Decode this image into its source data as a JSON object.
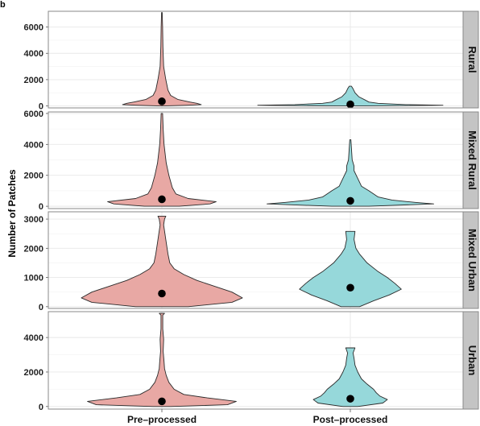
{
  "panel_label": "b",
  "chart_data": {
    "type": "violin",
    "ylabel": "Number of Patches",
    "xlabel": "",
    "categories": [
      "Pre–processed",
      "Post–processed"
    ],
    "colors": {
      "Pre–processed": "#e8a8a4",
      "Post–processed": "#96d8da",
      "strip": "#c4c4c4",
      "panel_border": "#8a8a8a",
      "grid": "#e8e8e8",
      "median_point": "#000000"
    },
    "grid": true,
    "legend": "none",
    "facets": [
      {
        "label": "Rural",
        "ylim": [
          -150,
          7200
        ],
        "yticks": [
          0,
          2000,
          4000,
          6000
        ],
        "groups": [
          {
            "category": "Pre–processed",
            "median": 350,
            "max": 7100,
            "profile": [
              [
                0,
                0.02
              ],
              [
                50,
                0.3
              ],
              [
                100,
                0.45
              ],
              [
                200,
                0.4
              ],
              [
                300,
                0.32
              ],
              [
                500,
                0.18
              ],
              [
                800,
                0.1
              ],
              [
                1200,
                0.07
              ],
              [
                2000,
                0.045
              ],
              [
                3000,
                0.02
              ],
              [
                4500,
                0.012
              ],
              [
                6000,
                0.008
              ],
              [
                7100,
                0.004
              ]
            ]
          },
          {
            "category": "Post–processed",
            "median": 120,
            "max": 1500,
            "profile": [
              [
                0,
                0.15
              ],
              [
                50,
                1.0
              ],
              [
                100,
                0.6
              ],
              [
                200,
                0.3
              ],
              [
                300,
                0.2
              ],
              [
                450,
                0.16
              ],
              [
                700,
                0.09
              ],
              [
                1000,
                0.05
              ],
              [
                1300,
                0.03
              ],
              [
                1500,
                0.012
              ]
            ]
          }
        ]
      },
      {
        "label": "Mixed Rural",
        "ylim": [
          -150,
          6100
        ],
        "yticks": [
          0,
          2000,
          4000,
          6000
        ],
        "groups": [
          {
            "category": "Pre–processed",
            "median": 450,
            "max": 6000,
            "profile": [
              [
                0,
                0.2
              ],
              [
                150,
                0.55
              ],
              [
                300,
                0.62
              ],
              [
                500,
                0.3
              ],
              [
                800,
                0.16
              ],
              [
                1200,
                0.12
              ],
              [
                2000,
                0.08
              ],
              [
                2800,
                0.05
              ],
              [
                4000,
                0.025
              ],
              [
                5000,
                0.015
              ],
              [
                6000,
                0.008
              ]
            ]
          },
          {
            "category": "Post–processed",
            "median": 350,
            "max": 4300,
            "profile": [
              [
                0,
                0.2
              ],
              [
                150,
                0.9
              ],
              [
                250,
                0.7
              ],
              [
                400,
                0.45
              ],
              [
                600,
                0.3
              ],
              [
                800,
                0.25
              ],
              [
                1000,
                0.2
              ],
              [
                1300,
                0.12
              ],
              [
                1800,
                0.08
              ],
              [
                2300,
                0.04
              ],
              [
                2600,
                0.04
              ],
              [
                3000,
                0.02
              ],
              [
                4300,
                0.006
              ]
            ]
          }
        ]
      },
      {
        "label": "Mixed Urban",
        "ylim": [
          -60,
          3250
        ],
        "yticks": [
          0,
          1000,
          2000,
          3000
        ],
        "groups": [
          {
            "category": "Pre–processed",
            "median": 450,
            "max": 3100,
            "profile": [
              [
                0,
                0.3
              ],
              [
                150,
                0.8
              ],
              [
                300,
                0.92
              ],
              [
                500,
                0.8
              ],
              [
                700,
                0.6
              ],
              [
                900,
                0.4
              ],
              [
                1100,
                0.25
              ],
              [
                1300,
                0.14
              ],
              [
                1500,
                0.09
              ],
              [
                1800,
                0.07
              ],
              [
                2200,
                0.05
              ],
              [
                2500,
                0.035
              ],
              [
                2800,
                0.02
              ],
              [
                3000,
                0.03
              ],
              [
                3100,
                0.045
              ]
            ]
          },
          {
            "category": "Post–processed",
            "median": 650,
            "max": 2580,
            "profile": [
              [
                0,
                0.1
              ],
              [
                200,
                0.25
              ],
              [
                400,
                0.42
              ],
              [
                600,
                0.55
              ],
              [
                800,
                0.48
              ],
              [
                1000,
                0.4
              ],
              [
                1200,
                0.3
              ],
              [
                1500,
                0.18
              ],
              [
                1800,
                0.1
              ],
              [
                2000,
                0.06
              ],
              [
                2300,
                0.04
              ],
              [
                2580,
                0.05
              ]
            ]
          }
        ]
      },
      {
        "label": "Urban",
        "ylim": [
          -150,
          5500
        ],
        "yticks": [
          0,
          2000,
          4000
        ],
        "groups": [
          {
            "category": "Pre–processed",
            "median": 300,
            "max": 5400,
            "profile": [
              [
                0,
                0.1
              ],
              [
                100,
                0.75
              ],
              [
                300,
                0.85
              ],
              [
                500,
                0.52
              ],
              [
                700,
                0.25
              ],
              [
                1000,
                0.14
              ],
              [
                1400,
                0.08
              ],
              [
                1800,
                0.05
              ],
              [
                2200,
                0.03
              ],
              [
                2600,
                0.025
              ],
              [
                3200,
                0.015
              ],
              [
                3900,
                0.02
              ],
              [
                4500,
                0.01
              ],
              [
                5300,
                0.01
              ],
              [
                5400,
                0.03
              ]
            ]
          },
          {
            "category": "Post–processed",
            "median": 450,
            "max": 3400,
            "profile": [
              [
                0,
                0.08
              ],
              [
                200,
                0.35
              ],
              [
                400,
                0.4
              ],
              [
                600,
                0.32
              ],
              [
                800,
                0.28
              ],
              [
                1000,
                0.25
              ],
              [
                1300,
                0.18
              ],
              [
                1600,
                0.12
              ],
              [
                2000,
                0.08
              ],
              [
                2400,
                0.05
              ],
              [
                2800,
                0.04
              ],
              [
                3100,
                0.03
              ],
              [
                3400,
                0.05
              ]
            ]
          }
        ]
      }
    ]
  }
}
